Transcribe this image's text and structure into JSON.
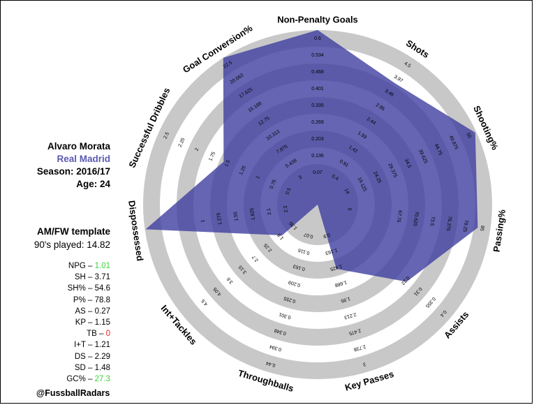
{
  "player": {
    "name": "Alvaro Morata",
    "team": "Real Madrid",
    "season": "Season: 2016/17",
    "age": "Age: 24"
  },
  "template": {
    "title": "AM/FW template",
    "played": "90's played: 14.82"
  },
  "stats": [
    {
      "label": "NPG – ",
      "value": "1.01",
      "status": "good"
    },
    {
      "label": "SH – ",
      "value": "3.71",
      "status": "normal"
    },
    {
      "label": "SH% – ",
      "value": "54.6",
      "status": "normal"
    },
    {
      "label": "P% – ",
      "value": "78.8",
      "status": "normal"
    },
    {
      "label": "AS – ",
      "value": "0.27",
      "status": "normal"
    },
    {
      "label": "KP – ",
      "value": "1.15",
      "status": "normal"
    },
    {
      "label": "TB – ",
      "value": "0",
      "status": "bad"
    },
    {
      "label": "I+T – ",
      "value": "1.21",
      "status": "normal"
    },
    {
      "label": "DS – ",
      "value": "2.29",
      "status": "normal"
    },
    {
      "label": "SD – ",
      "value": "1.48",
      "status": "normal"
    },
    {
      "label": "GC% – ",
      "value": "27.3",
      "status": "good"
    }
  ],
  "footer": {
    "handle": "@FussballRadars"
  },
  "colors": {
    "ring": "#c8c8c8",
    "fill": "#3f3fa0",
    "good": "#3cd23c",
    "bad": "#ee2222",
    "team": "#5a5ab0"
  },
  "chart_data": {
    "type": "radar",
    "title": "",
    "rings": 9,
    "axes": [
      {
        "name": "Non-Penalty Goals",
        "ticks": [
          "0.07",
          "0.136",
          "0.203",
          "0.269",
          "0.335",
          "0.401",
          "0.468",
          "0.534",
          "0.6"
        ],
        "value": 1.01,
        "min": 0,
        "max": 0.6
      },
      {
        "name": "Shots",
        "ticks": [
          "0.4",
          "0.91",
          "1.42",
          "1.93",
          "2.44",
          "2.95",
          "3.46",
          "3.97",
          "4.5"
        ],
        "value": 3.71,
        "min": 0,
        "max": 4.5
      },
      {
        "name": "Shooting%",
        "ticks": [
          "14",
          "19.125",
          "24.25",
          "29.375",
          "34.5",
          "39.625",
          "44.75",
          "49.875",
          "55"
        ],
        "value": 54.6,
        "min": 0,
        "max": 55
      },
      {
        "name": "Passing%",
        "ticks": [
          "0",
          "",
          "",
          "67.75",
          "70.625",
          "73.5",
          "76.375",
          "79.25",
          "85"
        ],
        "value": 78.8,
        "min": 0,
        "max": 85
      },
      {
        "name": "Assists",
        "ticks": [
          "",
          "",
          "",
          "",
          "",
          "0.22",
          "0.31",
          "0.355",
          "0.4"
        ],
        "value": 0.27,
        "min": 0,
        "max": 0.4
      },
      {
        "name": "Key Passes",
        "ticks": [
          "0.9",
          "1.163",
          "1.425",
          "1.688",
          "1.95",
          "2.213",
          "2.475",
          "2.738",
          "3"
        ],
        "value": 1.15,
        "min": 0,
        "max": 3
      },
      {
        "name": "Throughballs",
        "ticks": [
          "0.07",
          "0.116",
          "0.163",
          "0.209",
          "0.255",
          "0.301",
          "0.348",
          "0.394",
          "0.44"
        ],
        "value": 0,
        "min": 0,
        "max": 0.44
      },
      {
        "name": "Int+Tackles",
        "ticks": [
          "1.35",
          "1.8",
          "2.25",
          "2.7",
          "3.15",
          "3.6",
          "4.05",
          "4.5",
          ""
        ],
        "value": 1.21,
        "min": 0,
        "max": 4.5
      },
      {
        "name": "Dispossessed",
        "ticks": [
          "2.3",
          "2.1",
          "1.825",
          "1.55",
          "1.275",
          "1"
        ],
        "value": 2.29,
        "min": 0,
        "max": 2.3
      },
      {
        "name": "Successful Dribbles",
        "ticks": [
          "0.5",
          "0.75",
          "1",
          "1.25",
          "1.5",
          "1.75",
          "2",
          "2.25",
          "2.5"
        ],
        "value": 1.48,
        "min": 0,
        "max": 2.5
      },
      {
        "name": "Goal Conversion%",
        "ticks": [
          "3",
          "5.438",
          "7.875",
          "10.313",
          "12.75",
          "15.188",
          "17.625",
          "20.063",
          "22.5"
        ],
        "value": 27.3,
        "min": 0,
        "max": 22.5
      }
    ]
  }
}
